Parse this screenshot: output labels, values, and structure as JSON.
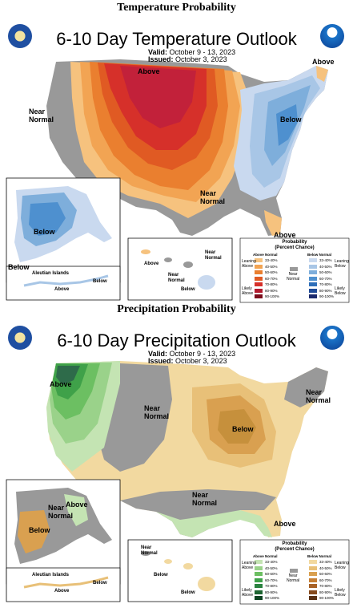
{
  "temperature": {
    "heading": "Temperature Probability",
    "title": "6-10 Day Temperature Outlook",
    "valid_label": "Valid:",
    "valid_value": "October 9 - 13, 2023",
    "issued_label": "Issued:",
    "issued_value": "October 3, 2023",
    "region_labels": {
      "above_central": "Above",
      "above_ne": "Above",
      "near_normal_west": "Near\nNormal",
      "below_east": "Below",
      "near_normal_south": "Near\nNormal",
      "above_florida": "Above",
      "alaska_below": "Below",
      "alaska_below_sw": "Below",
      "aleutian": "Aleutian Islands",
      "aleutian_above": "Above",
      "aleutian_below": "Below",
      "hawaii_near": "Near\nNormal",
      "hawaii_above": "Above",
      "hawaii_near2": "Near\nNormal",
      "hawaii_below": "Below"
    },
    "legend": {
      "title": "Probability\n(Percent Chance)",
      "col1": "Above Normal",
      "col2": "Below Normal",
      "left_top": "Leaning\nAbove",
      "left_bottom": "Likely\nAbove",
      "right_top": "Leaning\nBelow",
      "right_bottom": "Likely\nBelow",
      "mid": "Near\nNormal",
      "pcts": [
        "33-40%",
        "40-50%",
        "50-60%",
        "60-70%",
        "70-80%",
        "80-90%",
        "90-100%"
      ],
      "above_colors": [
        "#f6c27e",
        "#f2a453",
        "#ea7f2f",
        "#e05a23",
        "#d6302a",
        "#b21a2e",
        "#7c0d1c"
      ],
      "below_colors": [
        "#c9d9ef",
        "#a8c6e6",
        "#7eaedb",
        "#4e90cf",
        "#2f6fb9",
        "#1f4b98",
        "#1b2a6d"
      ]
    }
  },
  "precipitation": {
    "heading": "Precipitation Probability",
    "title": "6-10 Day Precipitation Outlook",
    "valid_label": "Valid:",
    "valid_value": "October 9 - 13, 2023",
    "issued_label": "Issued:",
    "issued_value": "October 3, 2023",
    "region_labels": {
      "above_nw": "Above",
      "near_normal_central": "Near\nNormal",
      "near_normal_ne": "Near\nNormal",
      "below_east": "Below",
      "near_normal_south": "Near\nNormal",
      "above_florida": "Above",
      "alaska_near": "Near\nNormal",
      "alaska_above": "Above",
      "alaska_below": "Below",
      "aleutian": "Aleutian Islands",
      "aleutian_above": "Above",
      "aleutian_below": "Below",
      "hawaii_near": "Near\nNormal",
      "hawaii_below": "Below",
      "hawaii_below2": "Below"
    },
    "legend": {
      "title": "Probability\n(Percent Chance)",
      "col1": "Above Normal",
      "col2": "Below Normal",
      "left_top": "Leaning\nAbove",
      "left_bottom": "Likely\nAbove",
      "right_top": "Leaning\nBelow",
      "right_bottom": "Likely\nBelow",
      "mid": "Near\nNormal",
      "pcts": [
        "33-40%",
        "40-50%",
        "50-60%",
        "60-70%",
        "70-80%",
        "80-90%",
        "90-100%"
      ],
      "above_colors": [
        "#c4e4b3",
        "#9ad28a",
        "#6cbf62",
        "#3fa149",
        "#2a8240",
        "#1e6532",
        "#0f4423"
      ],
      "below_colors": [
        "#f2d9a0",
        "#e8c078",
        "#d9a050",
        "#c67f35",
        "#a86227",
        "#864a1d",
        "#5a3013"
      ]
    }
  },
  "colors": {
    "near_normal": "#999999",
    "temp_above": [
      "#f6c27e",
      "#f2a453",
      "#ea7f2f",
      "#e05a23",
      "#d6302a",
      "#c2213a"
    ],
    "temp_below": [
      "#c9d9ef",
      "#a8c6e6",
      "#7eaedb",
      "#4e90cf"
    ],
    "precip_above": [
      "#c4e4b3",
      "#9ad28a",
      "#6cbf62",
      "#3fa149",
      "#2a8240",
      "#2e6b4a"
    ],
    "precip_below": [
      "#f2d9a0",
      "#e8c078",
      "#d9a050",
      "#c6903c"
    ]
  },
  "icons": [
    "noaa-logo-icon",
    "commerce-seal-icon"
  ]
}
